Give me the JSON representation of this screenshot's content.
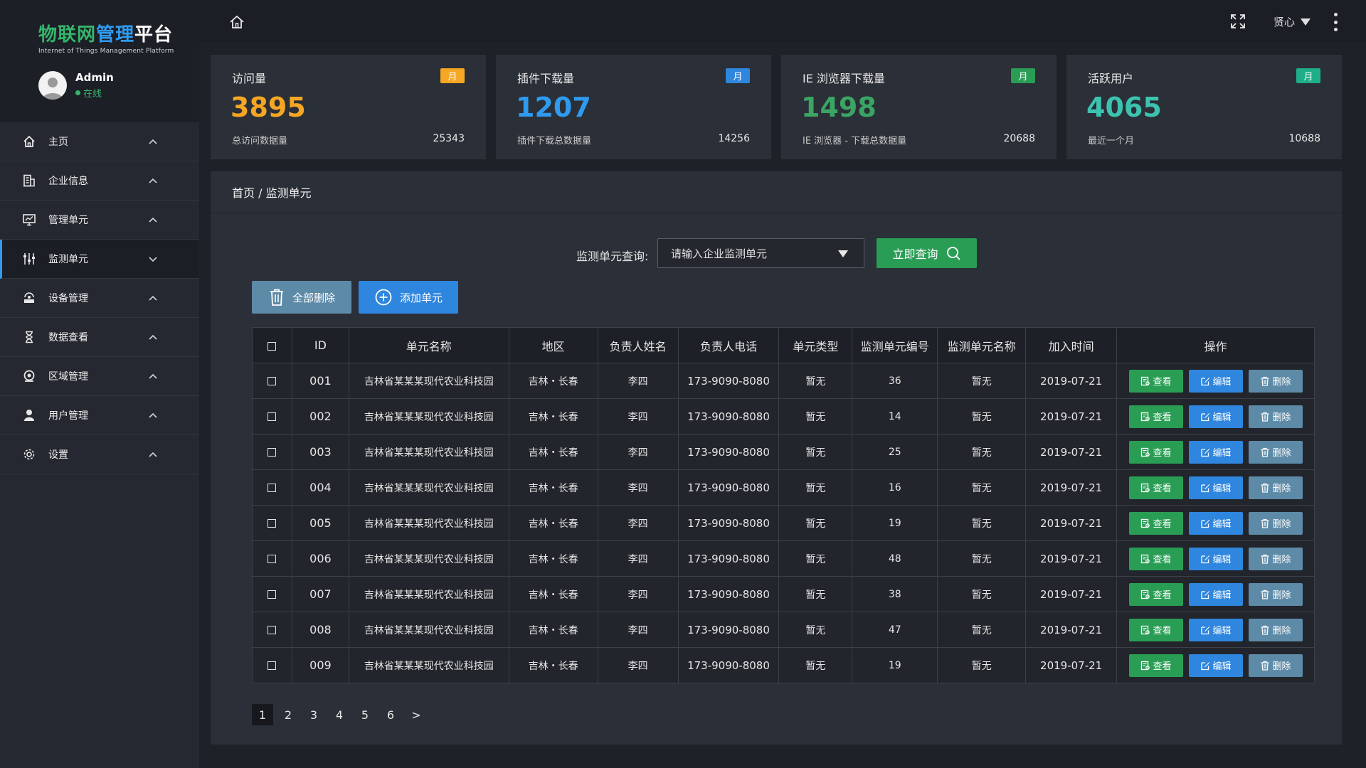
{
  "brand": {
    "title_part1": "物联网",
    "title_part2": "管理",
    "title_part3": "平台",
    "subtitle": "Internet of Things Management Platform"
  },
  "user": {
    "name": "Admin",
    "status": "在线"
  },
  "topbar": {
    "user_menu_label": "贤心"
  },
  "sidebar": {
    "items": [
      {
        "label": "主页",
        "icon": "home-icon"
      },
      {
        "label": "企业信息",
        "icon": "building-icon"
      },
      {
        "label": "管理单元",
        "icon": "monitor-chart-icon"
      },
      {
        "label": "监测单元",
        "icon": "sliders-icon",
        "active": true
      },
      {
        "label": "设备管理",
        "icon": "device-icon"
      },
      {
        "label": "数据查看",
        "icon": "hourglass-icon"
      },
      {
        "label": "区域管理",
        "icon": "location-icon"
      },
      {
        "label": "用户管理",
        "icon": "user-icon"
      },
      {
        "label": "设置",
        "icon": "gear-icon"
      }
    ]
  },
  "stats": [
    {
      "title": "访问量",
      "badge": "月",
      "value": "3895",
      "sub": "总访问数据量",
      "total": "25343",
      "color": "#f5a623",
      "badge_color": "#f5a623"
    },
    {
      "title": "插件下载量",
      "badge": "月",
      "value": "1207",
      "sub": "插件下载总数据量",
      "total": "14256",
      "color": "#2f9bf0",
      "badge_color": "#2f86de"
    },
    {
      "title": "IE 浏览器下载量",
      "badge": "月",
      "value": "1498",
      "sub": "IE 浏览器 - 下载总数据量",
      "total": "20688",
      "color": "#3aa564",
      "badge_color": "#2a9d55"
    },
    {
      "title": "活跃用户",
      "badge": "月",
      "value": "4065",
      "sub": "最近一个月",
      "total": "10688",
      "color": "#3cc3b0",
      "badge_color": "#1fae8a"
    }
  ],
  "breadcrumb": {
    "text": "首页 / 监测单元"
  },
  "search": {
    "label": "监测单元查询:",
    "placeholder": "请输入企业监测单元",
    "button": "立即查询"
  },
  "actions": {
    "delete_all": "全部删除",
    "add_unit": "添加单元"
  },
  "table": {
    "headers": [
      "ID",
      "单元名称",
      "地区",
      "负责人姓名",
      "负责人电话",
      "单元类型",
      "监测单元编号",
      "监测单元名称",
      "加入时间",
      "操作"
    ],
    "op_labels": {
      "view": "查看",
      "edit": "编辑",
      "delete": "删除"
    },
    "rows": [
      {
        "id": "001",
        "name": "吉林省某某某现代农业科技园",
        "region": "吉林・长春",
        "person": "李四",
        "phone": "173-9090-8080",
        "type": "暂无",
        "code": "36",
        "unit_name": "暂无",
        "date": "2019-07-21"
      },
      {
        "id": "002",
        "name": "吉林省某某某现代农业科技园",
        "region": "吉林・长春",
        "person": "李四",
        "phone": "173-9090-8080",
        "type": "暂无",
        "code": "14",
        "unit_name": "暂无",
        "date": "2019-07-21"
      },
      {
        "id": "003",
        "name": "吉林省某某某现代农业科技园",
        "region": "吉林・长春",
        "person": "李四",
        "phone": "173-9090-8080",
        "type": "暂无",
        "code": "25",
        "unit_name": "暂无",
        "date": "2019-07-21"
      },
      {
        "id": "004",
        "name": "吉林省某某某现代农业科技园",
        "region": "吉林・长春",
        "person": "李四",
        "phone": "173-9090-8080",
        "type": "暂无",
        "code": "16",
        "unit_name": "暂无",
        "date": "2019-07-21"
      },
      {
        "id": "005",
        "name": "吉林省某某某现代农业科技园",
        "region": "吉林・长春",
        "person": "李四",
        "phone": "173-9090-8080",
        "type": "暂无",
        "code": "19",
        "unit_name": "暂无",
        "date": "2019-07-21"
      },
      {
        "id": "006",
        "name": "吉林省某某某现代农业科技园",
        "region": "吉林・长春",
        "person": "李四",
        "phone": "173-9090-8080",
        "type": "暂无",
        "code": "48",
        "unit_name": "暂无",
        "date": "2019-07-21"
      },
      {
        "id": "007",
        "name": "吉林省某某某现代农业科技园",
        "region": "吉林・长春",
        "person": "李四",
        "phone": "173-9090-8080",
        "type": "暂无",
        "code": "38",
        "unit_name": "暂无",
        "date": "2019-07-21"
      },
      {
        "id": "008",
        "name": "吉林省某某某现代农业科技园",
        "region": "吉林・长春",
        "person": "李四",
        "phone": "173-9090-8080",
        "type": "暂无",
        "code": "47",
        "unit_name": "暂无",
        "date": "2019-07-21"
      },
      {
        "id": "009",
        "name": "吉林省某某某现代农业科技园",
        "region": "吉林・长春",
        "person": "李四",
        "phone": "173-9090-8080",
        "type": "暂无",
        "code": "19",
        "unit_name": "暂无",
        "date": "2019-07-21"
      }
    ]
  },
  "pagination": {
    "pages": [
      "1",
      "2",
      "3",
      "4",
      "5",
      "6"
    ],
    "current": "1",
    "next": ">"
  }
}
